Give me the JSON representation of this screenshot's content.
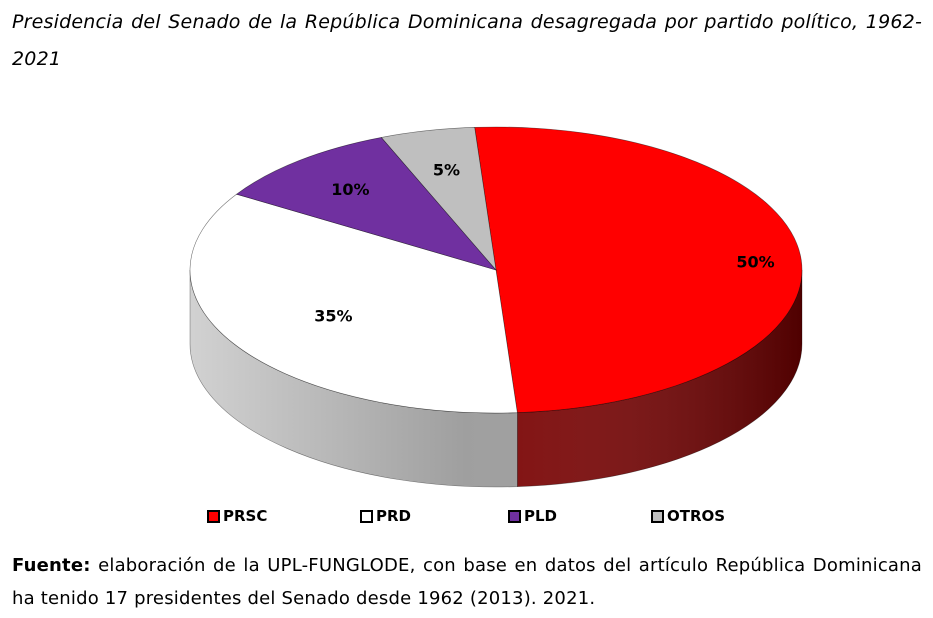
{
  "title": "Presidencia del Senado de la República Dominicana desagregada por partido político, 1962-2021",
  "source": {
    "label": "Fuente:",
    "text": " elaboración de la UPL-FUNGLODE, con base en datos del artículo República Dominicana ha tenido 17 presidentes del Senado desde 1962 (2013). 2021."
  },
  "chart_data": {
    "type": "pie",
    "title": "Presidencia del Senado de la República Dominicana desagregada por partido político, 1962-2021",
    "legend_position": "bottom",
    "three_d": true,
    "slices": [
      {
        "name": "PRSC",
        "value": 50,
        "label": "50%",
        "color": "#ff0000",
        "side_color": "#7a0000"
      },
      {
        "name": "PRD",
        "value": 35,
        "label": "35%",
        "color": "#ffffff",
        "side_color": "#9a9a9a"
      },
      {
        "name": "PLD",
        "value": 10,
        "label": "10%",
        "color": "#7030a0",
        "side_color": "#3c1258"
      },
      {
        "name": "OTROS",
        "value": 5,
        "label": "5%",
        "color": "#bfbfbf",
        "side_color": "#7f7f7f"
      }
    ]
  }
}
